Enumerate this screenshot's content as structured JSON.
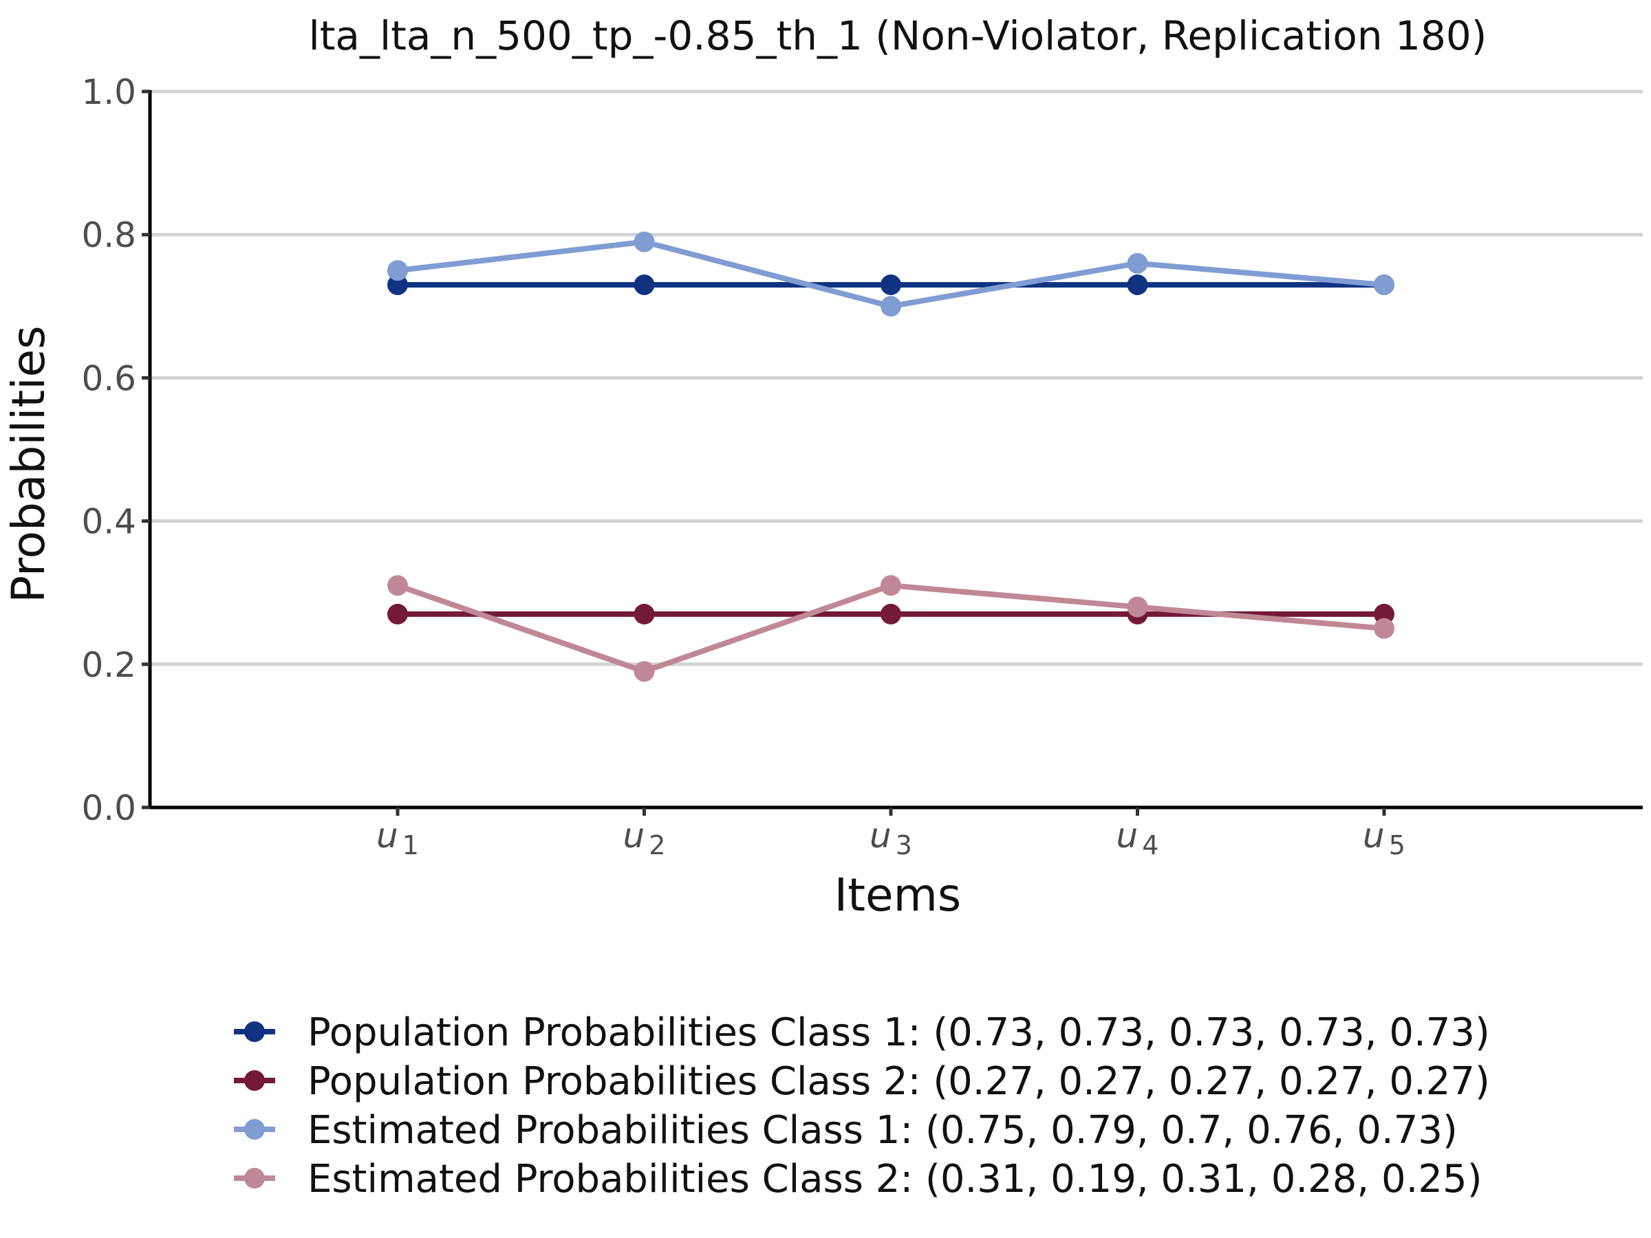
{
  "chart_data": {
    "type": "line",
    "title": "lta_lta_n_500_tp_-0.85_th_1 (Non-Violator, Replication 180)",
    "xlabel": "Items",
    "ylabel": "Probabilities",
    "x_categories": [
      {
        "var": "u",
        "sub": "1"
      },
      {
        "var": "u",
        "sub": "2"
      },
      {
        "var": "u",
        "sub": "3"
      },
      {
        "var": "u",
        "sub": "4"
      },
      {
        "var": "u",
        "sub": "5"
      }
    ],
    "ylim": [
      0,
      1
    ],
    "yticks": [
      "0.0",
      "0.2",
      "0.4",
      "0.6",
      "0.8",
      "1.0"
    ],
    "grid": "horizontal major",
    "legend_position": "bottom",
    "series": [
      {
        "name": "Population Probabilities Class 1: (0.73, 0.73, 0.73, 0.73, 0.73)",
        "values": [
          0.73,
          0.73,
          0.73,
          0.73,
          0.73
        ],
        "color": "#0f3380"
      },
      {
        "name": "Population Probabilities Class 2: (0.27, 0.27, 0.27, 0.27, 0.27)",
        "values": [
          0.27,
          0.27,
          0.27,
          0.27,
          0.27
        ],
        "color": "#741938"
      },
      {
        "name": "Estimated Probabilities Class 1: (0.75, 0.79, 0.7, 0.76, 0.73)",
        "values": [
          0.75,
          0.79,
          0.7,
          0.76,
          0.73
        ],
        "color": "#7f9cd3"
      },
      {
        "name": "Estimated Probabilities Class 2: (0.31, 0.19, 0.31, 0.28, 0.25)",
        "values": [
          0.31,
          0.19,
          0.31,
          0.28,
          0.25
        ],
        "color": "#c08896"
      }
    ]
  }
}
